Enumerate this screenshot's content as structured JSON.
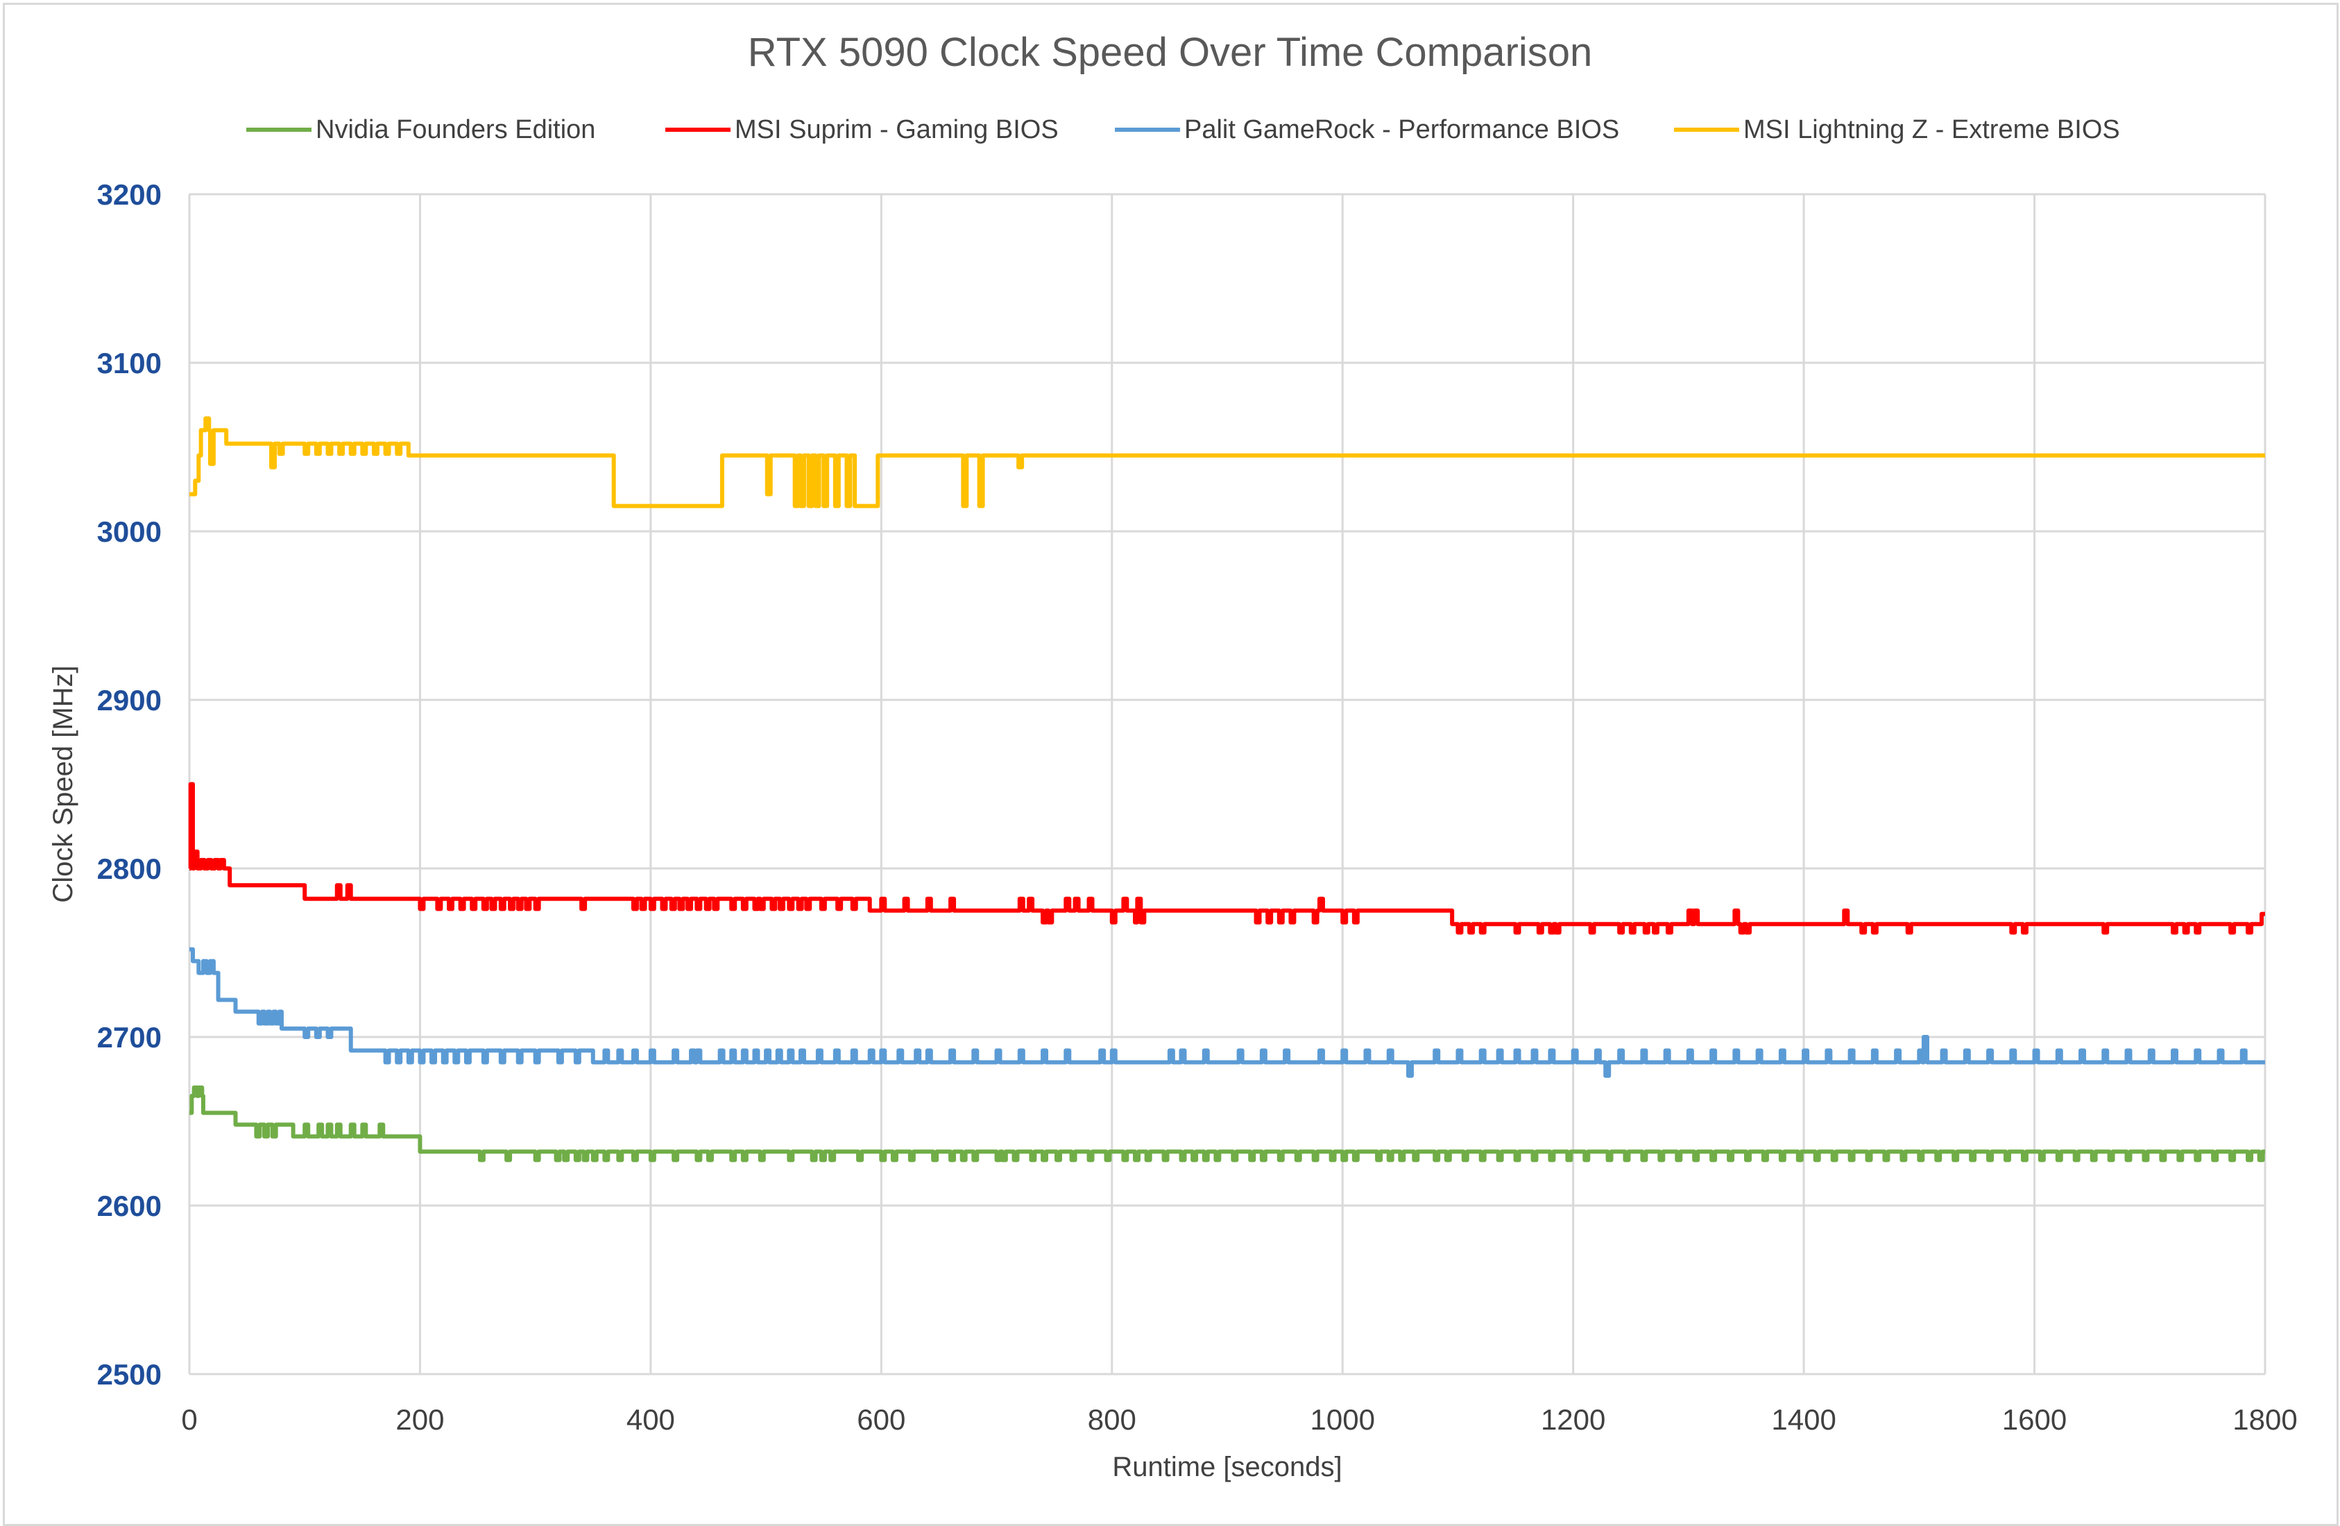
{
  "chart_data": {
    "type": "line",
    "title": "RTX 5090 Clock Speed Over Time Comparison",
    "xlabel": "Runtime [seconds]",
    "ylabel": "Clock Speed [MHz]",
    "xlim": [
      0,
      1800
    ],
    "ylim": [
      2500,
      3200
    ],
    "xticks": [
      0,
      200,
      400,
      600,
      800,
      1000,
      1200,
      1400,
      1600,
      1800
    ],
    "yticks": [
      2500,
      2600,
      2700,
      2800,
      2900,
      3000,
      3100,
      3200
    ],
    "grid": true,
    "legend_position": "top",
    "excursion_width_s": 3,
    "series": [
      {
        "name": "Nvidia Founders Edition",
        "color": "#70ad47",
        "steps": [
          [
            0,
            2655
          ],
          [
            2,
            2665
          ],
          [
            12,
            2655
          ],
          [
            40,
            2648
          ],
          [
            90,
            2641
          ],
          [
            200,
            2632
          ],
          [
            1800,
            2632
          ]
        ],
        "excursions": [
          {
            "y": 2670,
            "x": [
              4,
              8
            ]
          },
          {
            "y": 2648,
            "x": [
              100,
              112,
              120,
              128,
              140,
              150,
              165
            ]
          },
          {
            "y": 2641,
            "x": [
              58,
              65,
              72
            ]
          },
          {
            "y": 2627,
            "x": [
              252,
              275,
              300,
              318,
              325,
              335,
              342,
              350,
              360,
              372,
              385,
              400,
              420,
              440,
              450,
              470,
              480,
              495,
              520,
              540,
              548,
              556,
              580,
              600,
              610,
              625,
              645,
              660,
              670,
              680,
              700,
              705,
              715,
              730,
              740,
              752,
              765,
              780,
              795,
              810,
              820,
              830,
              845,
              860,
              870,
              880,
              890,
              905,
              920,
              930,
              945,
              960,
              975,
              990,
              1000,
              1010,
              1030,
              1040,
              1050,
              1062,
              1080,
              1090,
              1105,
              1120,
              1135,
              1150,
              1165,
              1180,
              1195,
              1210,
              1230,
              1245,
              1260,
              1275,
              1290,
              1305,
              1320,
              1335,
              1350,
              1365,
              1380,
              1395,
              1410,
              1425,
              1440,
              1455,
              1470,
              1485,
              1500,
              1515,
              1530,
              1545,
              1560,
              1575,
              1590,
              1605,
              1620,
              1635,
              1650,
              1665,
              1680,
              1695,
              1710,
              1725,
              1740,
              1755,
              1770,
              1785,
              1795
            ]
          }
        ]
      },
      {
        "name": "MSI Suprim - Gaming BIOS",
        "color": "#ff0000",
        "steps": [
          [
            0,
            2800
          ],
          [
            1,
            2850
          ],
          [
            3,
            2800
          ],
          [
            35,
            2790
          ],
          [
            100,
            2782
          ],
          [
            590,
            2775
          ],
          [
            1095,
            2767
          ],
          [
            1797,
            2773
          ],
          [
            1800,
            2773
          ]
        ],
        "excursions": [
          {
            "y": 2810,
            "x": [
              4
            ]
          },
          {
            "y": 2805,
            "x": [
              10,
              16,
              22,
              27
            ]
          },
          {
            "y": 2790,
            "x": [
              128,
              137
            ]
          },
          {
            "y": 2776,
            "x": [
              200,
              215,
              225,
              235,
              245,
              255,
              262,
              270,
              278,
              285,
              292,
              300,
              340,
              385,
              392,
              400,
              410,
              418,
              425,
              432,
              440,
              448,
              455,
              470,
              480,
              490,
              495,
              505,
              512,
              520,
              528,
              535,
              548,
              562,
              575
            ]
          },
          {
            "y": 2782,
            "x": [
              600,
              620,
              640,
              660,
              720,
              728,
              760,
              768,
              780,
              810,
              822,
              980
            ]
          },
          {
            "y": 2768,
            "x": [
              740,
              745,
              800,
              820,
              825,
              925,
              935,
              945,
              955,
              975,
              1000,
              1010
            ]
          },
          {
            "y": 2762,
            "x": [
              1100,
              1110,
              1120,
              1150,
              1170,
              1180,
              1185,
              1215,
              1240,
              1250,
              1262,
              1270,
              1282,
              1345,
              1350,
              1450,
              1460,
              1490,
              1580,
              1590,
              1660,
              1720,
              1730,
              1740,
              1770,
              1785
            ]
          },
          {
            "y": 2775,
            "x": [
              1300,
              1305,
              1340,
              1435
            ]
          }
        ]
      },
      {
        "name": "Palit GameRock - Performance BIOS",
        "color": "#5b9bd5",
        "steps": [
          [
            0,
            2752
          ],
          [
            3,
            2745
          ],
          [
            8,
            2738
          ],
          [
            25,
            2722
          ],
          [
            40,
            2715
          ],
          [
            80,
            2705
          ],
          [
            140,
            2692
          ],
          [
            350,
            2685
          ],
          [
            1800,
            2685
          ]
        ],
        "excursions": [
          {
            "y": 2745,
            "x": [
              12,
              18
            ]
          },
          {
            "y": 2708,
            "x": [
              60,
              65,
              70,
              75
            ]
          },
          {
            "y": 2700,
            "x": [
              100,
              110,
              120
            ]
          },
          {
            "y": 2685,
            "x": [
              170,
              180,
              190,
              200,
              210,
              220,
              230,
              240,
              255,
              270,
              285,
              300,
              320,
              335
            ]
          },
          {
            "y": 2692,
            "x": [
              360,
              372,
              385,
              400,
              420,
              435,
              440,
              460,
              470,
              480,
              490,
              500,
              510,
              520,
              530,
              545,
              560,
              575,
              590,
              600,
              615,
              630,
              640,
              660,
              680,
              700,
              720,
              740,
              760,
              790,
              800,
              850,
              860,
              880,
              910,
              930,
              950,
              980,
              1000,
              1020,
              1040,
              1080,
              1100,
              1120,
              1135,
              1150,
              1165,
              1180,
              1200,
              1220,
              1240,
              1260,
              1280,
              1300,
              1320,
              1340,
              1360,
              1380,
              1400,
              1420,
              1440,
              1460,
              1480,
              1500,
              1520,
              1540,
              1560,
              1580,
              1600,
              1620,
              1640,
              1660,
              1680,
              1700,
              1720,
              1740,
              1760,
              1780
            ]
          },
          {
            "y": 2677,
            "x": [
              1057,
              1228
            ]
          },
          {
            "y": 2700,
            "x": [
              1504
            ]
          }
        ]
      },
      {
        "name": "MSI Lightning Z - Extreme BIOS",
        "color": "#ffc000",
        "steps": [
          [
            0,
            3022
          ],
          [
            5,
            3030
          ],
          [
            8,
            3045
          ],
          [
            10,
            3060
          ],
          [
            14,
            3067
          ],
          [
            17,
            3060
          ],
          [
            32,
            3052
          ],
          [
            190,
            3045
          ],
          [
            367,
            3045
          ],
          [
            368,
            3015
          ],
          [
            461,
            3015
          ],
          [
            462,
            3045
          ],
          [
            577,
            3015
          ],
          [
            596,
            3015
          ],
          [
            597,
            3045
          ],
          [
            1800,
            3045
          ]
        ],
        "excursions": [
          {
            "y": 3040,
            "x": [
              18
            ]
          },
          {
            "y": 3038,
            "x": [
              71
            ]
          },
          {
            "y": 3046,
            "x": [
              78,
              100,
              110,
              120,
              130,
              140,
              150,
              160,
              170,
              180
            ]
          },
          {
            "y": 3022,
            "x": [
              501
            ]
          },
          {
            "y": 3015,
            "x": [
              525,
              530,
              537,
              543,
              550,
              560,
              570,
              671,
              685
            ]
          },
          {
            "y": 3038,
            "x": [
              719
            ]
          }
        ]
      }
    ]
  }
}
